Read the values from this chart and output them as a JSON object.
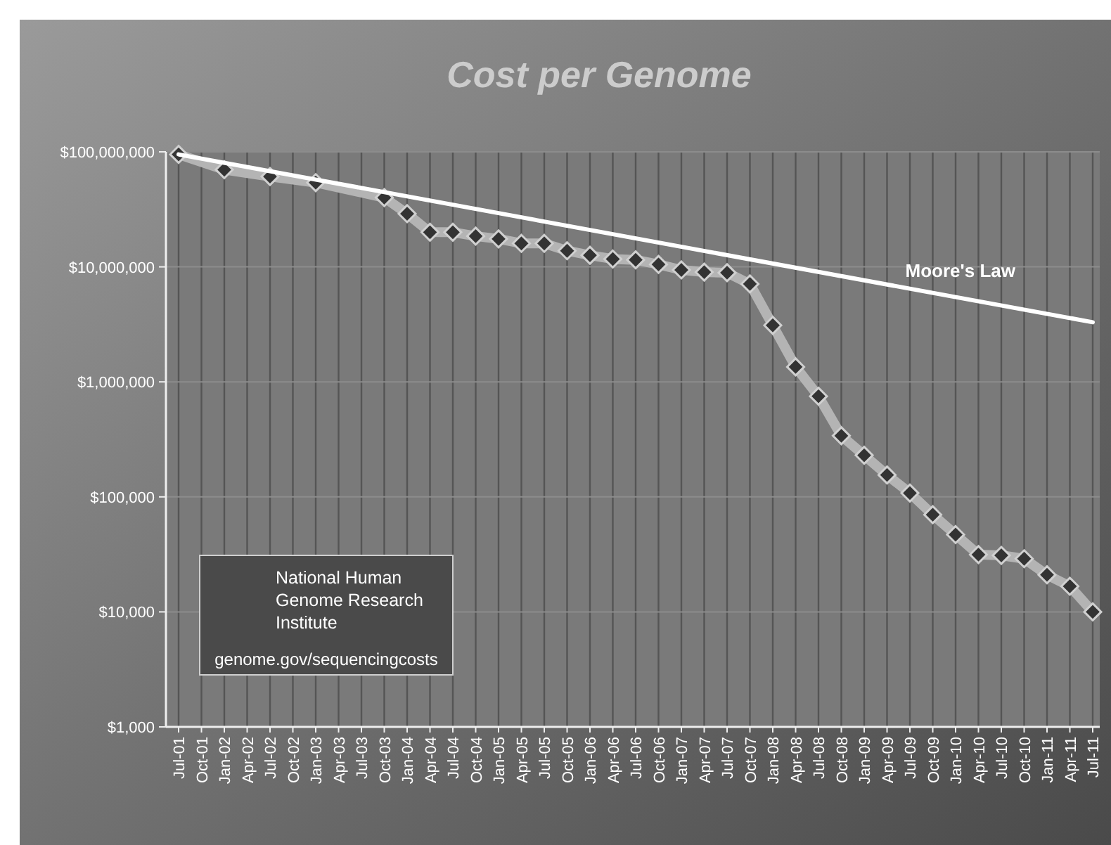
{
  "chart_data": {
    "type": "line",
    "title": "Cost per Genome",
    "log": true,
    "grid": true,
    "categories": [
      "Jul-01",
      "Oct-01",
      "Jan-02",
      "Apr-02",
      "Jul-02",
      "Oct-02",
      "Jan-03",
      "Apr-03",
      "Jul-03",
      "Oct-03",
      "Jan-04",
      "Apr-04",
      "Jul-04",
      "Oct-04",
      "Jan-05",
      "Apr-05",
      "Jul-05",
      "Oct-05",
      "Jan-06",
      "Apr-06",
      "Jul-06",
      "Oct-06",
      "Jan-07",
      "Apr-07",
      "Jul-07",
      "Oct-07",
      "Jan-08",
      "Apr-08",
      "Jul-08",
      "Oct-08",
      "Jan-09",
      "Apr-09",
      "Jul-09",
      "Oct-09",
      "Jan-10",
      "Apr-10",
      "Jul-10",
      "Oct-10",
      "Jan-11",
      "Apr-11",
      "Jul-11"
    ],
    "ylim": [
      1000,
      100000000
    ],
    "yticks": [
      {
        "value": 1000,
        "label": "$1,000"
      },
      {
        "value": 10000,
        "label": "$10,000"
      },
      {
        "value": 100000,
        "label": "$100,000"
      },
      {
        "value": 1000000,
        "label": "$1,000,000"
      },
      {
        "value": 10000000,
        "label": "$10,000,000"
      },
      {
        "value": 100000000,
        "label": "$100,000,000"
      }
    ],
    "series": [
      {
        "color": "#b4b4b4",
        "marker": "diamond",
        "x": [
          "Jul-01",
          "Jan-02",
          "Jul-02",
          "Jan-03",
          "Oct-03",
          "Jan-04",
          "Apr-04",
          "Jul-04",
          "Oct-04",
          "Jan-05",
          "Apr-05",
          "Jul-05",
          "Oct-05",
          "Jan-06",
          "Apr-06",
          "Jul-06",
          "Oct-06",
          "Jan-07",
          "Apr-07",
          "Jul-07",
          "Oct-07",
          "Jan-08",
          "Apr-08",
          "Jul-08",
          "Oct-08",
          "Jan-09",
          "Apr-09",
          "Jul-09",
          "Oct-09",
          "Jan-10",
          "Apr-10",
          "Jul-10",
          "Oct-10",
          "Jan-11",
          "Apr-11",
          "Jul-11"
        ],
        "values": [
          95000000,
          70000000,
          61000000,
          54000000,
          40000000,
          29000000,
          20000000,
          20000000,
          18500000,
          17500000,
          16000000,
          16000000,
          13800000,
          12600000,
          11700000,
          11500000,
          10500000,
          9400000,
          9000000,
          8900000,
          7100000,
          3100000,
          1350000,
          750000,
          340000,
          230000,
          155000,
          108000,
          70000,
          47000,
          31500,
          31000,
          29000,
          21000,
          16700,
          10000
        ]
      },
      {
        "name": "Moore's Law",
        "color": "#ffffff",
        "marker": "none",
        "x": [
          "Jul-01",
          "Jul-11"
        ],
        "values": [
          95000000,
          3300000
        ]
      }
    ],
    "annotations": [
      "National Human Genome Research Institute",
      "genome.gov/sequencingcosts"
    ]
  }
}
